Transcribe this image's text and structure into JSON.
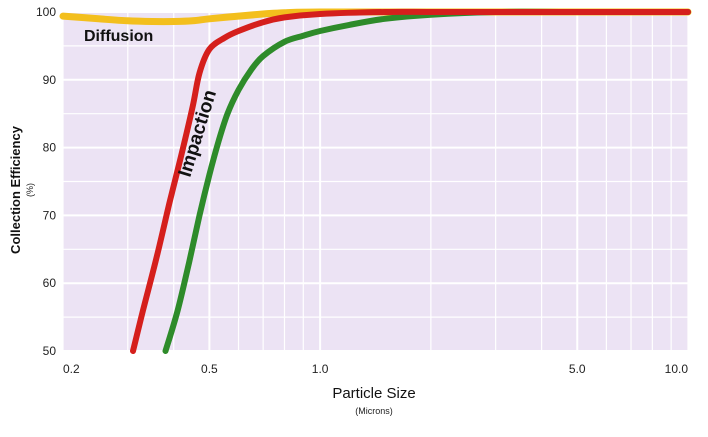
{
  "chart_data": {
    "type": "line",
    "x_scale": "log",
    "xlim": [
      0.2,
      10.0
    ],
    "ylim": [
      50,
      100
    ],
    "x_ticks": [
      0.2,
      0.5,
      1.0,
      5.0,
      10.0
    ],
    "x_tick_labels": [
      "0.2",
      "0.5",
      "1.0",
      "5.0",
      "10.0"
    ],
    "y_ticks": [
      50,
      60,
      70,
      80,
      90,
      100
    ],
    "y_tick_labels": [
      "50",
      "60",
      "70",
      "80",
      "90",
      "100"
    ],
    "xlabel": "Particle Size",
    "xlabel_unit": "(Microns)",
    "ylabel": "Collection Efficiency",
    "ylabel_unit": "(%)",
    "grid": true,
    "plot_background": "#ece3f4",
    "grid_color": "#ffffff",
    "series": [
      {
        "name": "Diffusion",
        "color": "#f3bf1d",
        "x": [
          0.2,
          0.25,
          0.3,
          0.35,
          0.4,
          0.45,
          0.5,
          0.6,
          0.7,
          0.8,
          1.0,
          2.0,
          5.0,
          10.0
        ],
        "y": [
          99.4,
          99.0,
          98.7,
          98.6,
          98.6,
          98.7,
          99.0,
          99.4,
          99.7,
          99.9,
          100.0,
          100.0,
          100.0,
          100.0
        ]
      },
      {
        "name": "",
        "color": "#d51f1c",
        "x": [
          0.31,
          0.33,
          0.36,
          0.39,
          0.42,
          0.45,
          0.47,
          0.5,
          0.55,
          0.6,
          0.7,
          0.8,
          1.0,
          1.5,
          2.0,
          3.0,
          5.0,
          10.0
        ],
        "y": [
          50,
          56,
          64,
          72,
          79,
          86,
          91,
          94.5,
          96.2,
          97.2,
          98.5,
          99.2,
          99.7,
          100.0,
          100.0,
          100.0,
          100.0,
          100.0
        ]
      },
      {
        "name": "",
        "color": "#2e8b2a",
        "x": [
          0.38,
          0.41,
          0.44,
          0.47,
          0.5,
          0.53,
          0.56,
          0.6,
          0.65,
          0.7,
          0.8,
          0.9,
          1.0,
          1.2,
          1.5,
          2.0,
          3.0,
          5.0,
          10.0
        ],
        "y": [
          50,
          56,
          63,
          70,
          76,
          81,
          85,
          88.5,
          91.5,
          93.5,
          95.6,
          96.5,
          97.2,
          98.1,
          99.0,
          99.6,
          100.0,
          100.0,
          100.0
        ]
      }
    ],
    "annotations": [
      {
        "text": "Diffusion",
        "color": "#111111"
      },
      {
        "text": "Impaction",
        "color": "#111111"
      }
    ]
  }
}
